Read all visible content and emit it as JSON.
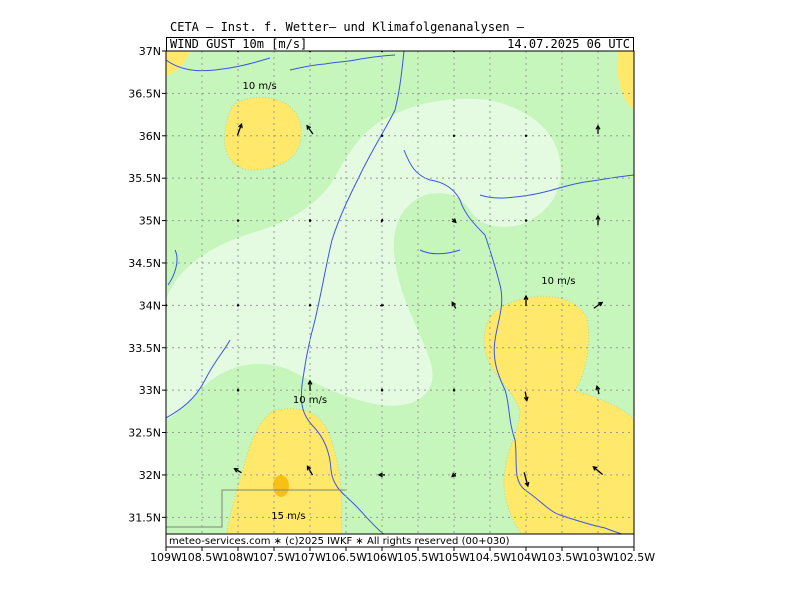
{
  "header": {
    "title": "CETA – Inst. f. Wetter– und Klimafolgenanalysen –",
    "field": "WIND_GUST_10m_[m/s]",
    "valid_time": "14.07.2025 06 UTC"
  },
  "footer": {
    "credit": "meteo-services.com ∗ (c)2025 IWKF ∗ All rights reserved (00+030)"
  },
  "axes": {
    "lat_ticks": [
      "37N",
      "36.5N",
      "36N",
      "35.5N",
      "35N",
      "34.5N",
      "34N",
      "33.5N",
      "33N",
      "32.5N",
      "32N",
      "31.5N"
    ],
    "lon_ticks": [
      "109W",
      "108.5W",
      "108W",
      "107.5W",
      "107W",
      "106.5W",
      "106W",
      "105.5W",
      "105W",
      "104.5W",
      "104W",
      "103.5W",
      "103W",
      "102.5W"
    ]
  },
  "legend_colors": {
    "under_5": "#e4fbe2",
    "5_to_10": "#c6f6bc",
    "10_to_15": "#ffe86a",
    "over_15": "#f7c013"
  },
  "contour_labels": [
    {
      "text": "10 m/s",
      "lon": -107.7,
      "lat": 36.55
    },
    {
      "text": "10 m/s",
      "lon": -103.55,
      "lat": 34.25
    },
    {
      "text": "10 m/s",
      "lon": -107.0,
      "lat": 32.85
    },
    {
      "text": "15 m/s",
      "lon": -107.3,
      "lat": 31.48
    }
  ]
}
